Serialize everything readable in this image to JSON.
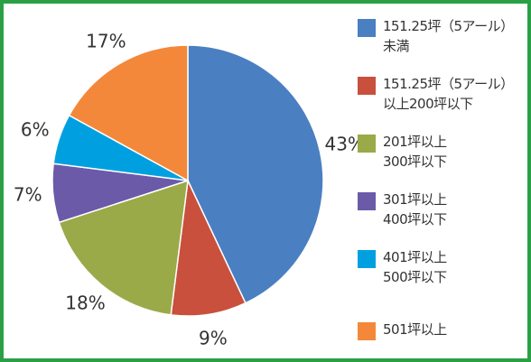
{
  "chart_data": {
    "type": "pie",
    "categories": [
      "151.25坪（5アール）\n未満",
      "151.25坪（5アール）\n以上200坪以下",
      "201坪以上\n300坪以下",
      "301坪以上\n400坪以下",
      "401坪以上\n500坪以下",
      "501坪以上"
    ],
    "values": [
      43,
      9,
      18,
      7,
      6,
      17
    ],
    "value_labels": [
      "43%",
      "9%",
      "18%",
      "7%",
      "6%",
      "17%"
    ],
    "colors": [
      "#4a7fc1",
      "#c9503c",
      "#9aaa48",
      "#6b5aa8",
      "#00a0e0",
      "#f4883a"
    ],
    "legend": "right"
  }
}
